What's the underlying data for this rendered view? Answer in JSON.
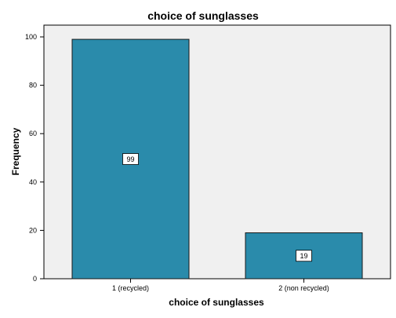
{
  "chart_data": {
    "type": "bar",
    "title": "choice of sunglasses",
    "xlabel": "choice of sunglasses",
    "ylabel": "Frequency",
    "categories": [
      "1 (recycled)",
      "2 (non recycled)"
    ],
    "values": [
      99,
      19
    ],
    "data_labels": [
      "99",
      "19"
    ],
    "ylim": [
      0,
      100
    ],
    "yticks": [
      0,
      20,
      40,
      60,
      80,
      100
    ],
    "ytick_labels": [
      "0",
      "20",
      "40",
      "60",
      "80",
      "100"
    ],
    "grid": false,
    "legend": "none",
    "colors": {
      "bar_fill": "#2a8bab",
      "bar_stroke": "#1a1a1a",
      "plot_background": "#f0f0f0",
      "plot_border": "#000000"
    }
  }
}
